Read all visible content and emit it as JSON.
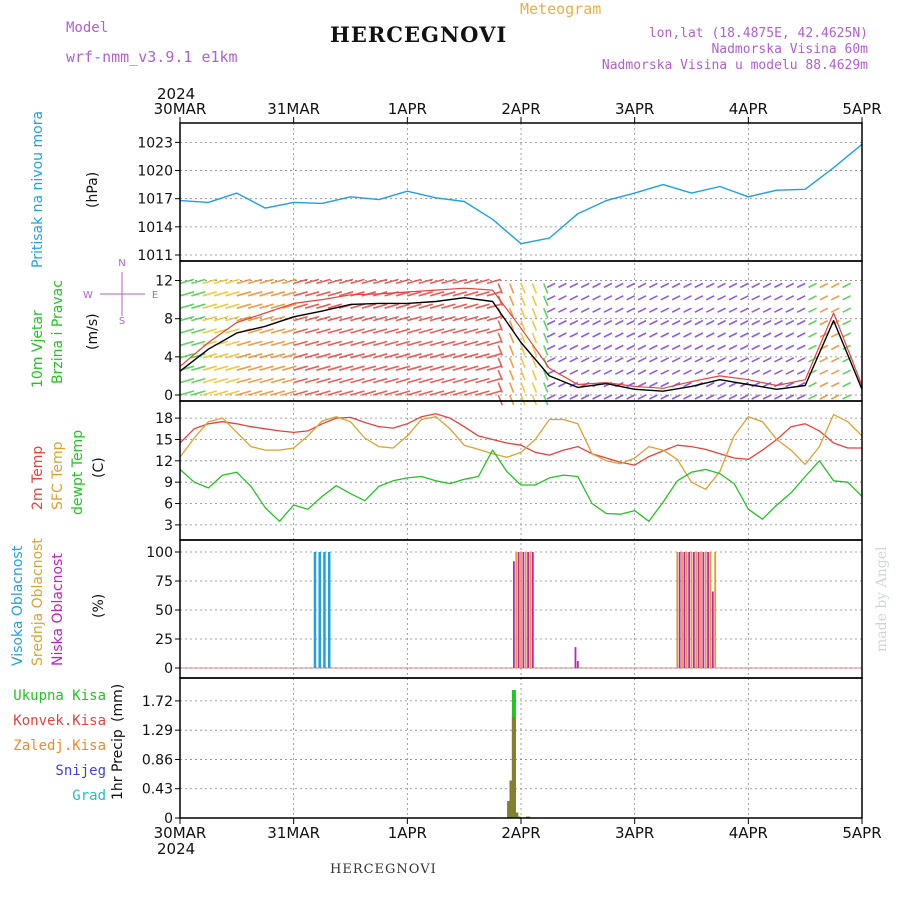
{
  "header": {
    "model_label": "Model",
    "model_value": "wrf-nmm_v3.9.1 e1km",
    "title": "HERCEGNOVI",
    "meteogram_label": "Meteogram",
    "lonlat": "lon,lat (18.4875E, 42.4625N)",
    "elevation": "Nadmorska Visina 60m",
    "model_elevation": "Nadmorska Visina u modelu 88.4629m",
    "year_top": "2024",
    "year_bottom": "2024",
    "footer_title": "HERCEGNOVI",
    "credit": "made by Angel"
  },
  "colors": {
    "pressure": "#1ea0e6",
    "wind_label": "#22c422",
    "temp2m": "#e8423a",
    "sfc": "#e0a030",
    "dewpt": "#22c422",
    "cloud_high": "#1ea0e6",
    "cloud_mid": "#e0a030",
    "cloud_low": "#c020c0",
    "violet": "#b060d0",
    "grid": "#888888"
  },
  "chart_data": [
    {
      "type": "line",
      "id": "pressure",
      "ylabel": "Pritisak na nivou mora",
      "unit": "(hPa)",
      "x_ticks": [
        "30MAR",
        "31MAR",
        "1APR",
        "2APR",
        "3APR",
        "4APR",
        "5APR"
      ],
      "ylim": [
        1011,
        1024
      ],
      "yticks": [
        1011,
        1014,
        1017,
        1020,
        1023
      ],
      "grid": true,
      "x_hours": [
        0,
        6,
        12,
        18,
        24,
        30,
        36,
        42,
        48,
        54,
        60,
        66,
        72,
        78,
        84,
        90,
        96,
        102,
        108,
        114,
        120,
        126,
        132,
        138,
        144
      ],
      "values": [
        1016.8,
        1016.6,
        1017.6,
        1016.0,
        1016.6,
        1016.5,
        1017.2,
        1016.9,
        1017.8,
        1017.1,
        1016.7,
        1014.8,
        1012.2,
        1012.8,
        1015.4,
        1016.8,
        1017.6,
        1018.5,
        1017.6,
        1018.3,
        1017.2,
        1017.9,
        1018.0,
        1020.3,
        1022.8
      ]
    },
    {
      "type": "line",
      "id": "wind",
      "ylabel": [
        "10m Vjetar",
        "Brzina i Pravac"
      ],
      "unit": "(m/s)",
      "compass": {
        "n": "N",
        "s": "S",
        "e": "E",
        "w": "W"
      },
      "ylim": [
        0,
        13
      ],
      "yticks": [
        0,
        4,
        8,
        12
      ],
      "grid": true,
      "x_hours": [
        0,
        6,
        12,
        18,
        24,
        30,
        36,
        42,
        48,
        54,
        60,
        66,
        72,
        78,
        84,
        90,
        96,
        102,
        108,
        114,
        120,
        126,
        132,
        138,
        144
      ],
      "values": [
        2.5,
        4.8,
        6.5,
        7.2,
        8.2,
        8.8,
        9.5,
        9.6,
        9.6,
        9.8,
        10.2,
        9.8,
        5.5,
        2.0,
        0.8,
        1.2,
        0.6,
        0.4,
        0.9,
        1.6,
        1.1,
        0.6,
        1.0,
        7.8,
        0.6
      ],
      "gusts": [
        3.0,
        5.5,
        7.6,
        8.6,
        9.6,
        10.0,
        10.5,
        10.6,
        10.8,
        11.0,
        11.2,
        11.0,
        7.0,
        2.8,
        1.1,
        1.3,
        0.9,
        0.7,
        1.4,
        2.0,
        1.6,
        1.0,
        1.6,
        8.6,
        1.0
      ]
    },
    {
      "type": "line",
      "id": "temperature",
      "ylabel": [
        "2m Temp",
        "SFC Temp",
        "dewpt Temp"
      ],
      "unit": "(C)",
      "ylim": [
        2,
        19
      ],
      "yticks": [
        3,
        6,
        9,
        12,
        15,
        18
      ],
      "grid": true,
      "x_hours": [
        0,
        3,
        6,
        9,
        12,
        15,
        18,
        21,
        24,
        27,
        30,
        33,
        36,
        39,
        42,
        45,
        48,
        51,
        54,
        57,
        60,
        63,
        66,
        69,
        72,
        75,
        78,
        81,
        84,
        87,
        90,
        93,
        96,
        99,
        102,
        105,
        108,
        111,
        114,
        117,
        120,
        123,
        126,
        129,
        132,
        135,
        138,
        141,
        144
      ],
      "series": [
        {
          "name": "2m Temp",
          "values": [
            14.5,
            16.5,
            17.2,
            17.5,
            17.2,
            16.8,
            16.5,
            16.2,
            16.0,
            16.2,
            17.2,
            18.0,
            18.1,
            17.4,
            16.8,
            16.6,
            17.2,
            18.2,
            18.6,
            18.0,
            16.8,
            15.5,
            15.0,
            14.5,
            14.2,
            13.2,
            12.8,
            13.5,
            14.0,
            13.0,
            12.4,
            11.8,
            11.4,
            12.6,
            13.4,
            14.2,
            14.0,
            13.6,
            13.0,
            12.4,
            12.2,
            13.5,
            15.0,
            16.8,
            17.2,
            16.2,
            14.5,
            13.8,
            13.8
          ]
        },
        {
          "name": "SFC Temp",
          "values": [
            12.5,
            15.2,
            17.5,
            18.0,
            16.0,
            14.0,
            13.5,
            13.5,
            13.8,
            15.5,
            17.6,
            18.2,
            17.5,
            15.2,
            14.0,
            13.8,
            15.5,
            17.8,
            18.2,
            16.5,
            14.2,
            13.6,
            13.0,
            12.5,
            13.2,
            15.0,
            17.8,
            17.8,
            17.2,
            13.0,
            12.0,
            11.6,
            12.4,
            14.0,
            13.5,
            12.2,
            9.0,
            8.0,
            10.5,
            15.5,
            18.2,
            17.5,
            15.0,
            13.5,
            11.5,
            14.0,
            18.5,
            17.5,
            15.5
          ]
        },
        {
          "name": "dewpt Temp",
          "values": [
            10.8,
            9.0,
            8.2,
            10.0,
            10.4,
            8.4,
            5.4,
            3.5,
            5.8,
            5.2,
            7.0,
            8.5,
            7.4,
            6.4,
            8.4,
            9.2,
            9.6,
            9.8,
            9.2,
            8.8,
            9.4,
            9.8,
            13.5,
            10.5,
            8.6,
            8.6,
            9.6,
            10.0,
            9.8,
            6.0,
            4.6,
            4.5,
            5.0,
            3.5,
            6.2,
            9.2,
            10.4,
            10.8,
            10.2,
            8.8,
            5.2,
            3.8,
            5.8,
            7.5,
            9.8,
            12.0,
            9.2,
            9.0,
            7.0
          ]
        }
      ]
    },
    {
      "type": "bar",
      "id": "clouds",
      "ylabel": [
        "Visoka Oblacnost",
        "Srednja Oblacnost",
        "Niska Oblacnost"
      ],
      "unit": "(%)",
      "ylim": [
        0,
        100
      ],
      "yticks": [
        0,
        25,
        50,
        75,
        100
      ],
      "grid": true,
      "series": [
        {
          "name": "Visoka Oblacnost",
          "x_hours": [
            28.5,
            29.5,
            30.5,
            31.5
          ],
          "values": [
            100,
            100,
            100,
            100
          ]
        },
        {
          "name": "Srednja Oblacnost",
          "x_hours": [
            71.0,
            72.0,
            73.0,
            74.0,
            105.0,
            106.0,
            107.0,
            108.0,
            109.0,
            110.0,
            111.0,
            112.0,
            113.0
          ],
          "values": [
            100,
            100,
            100,
            100,
            100,
            100,
            100,
            100,
            100,
            100,
            100,
            100,
            100
          ]
        },
        {
          "name": "Niska Oblacnost",
          "x_hours": [
            70.5,
            71.5,
            72.5,
            73.5,
            74.5,
            83.5,
            84.0,
            105.5,
            106.5,
            107.5,
            108.5,
            109.5,
            110.5,
            111.5,
            112.5
          ],
          "values": [
            92,
            100,
            100,
            100,
            100,
            18,
            6,
            100,
            100,
            100,
            100,
            100,
            100,
            100,
            66
          ]
        }
      ]
    },
    {
      "type": "bar",
      "id": "precip",
      "ylabel": "1hr Precip",
      "unit": "(mm)",
      "legend": [
        "Ukupna Kisa",
        "Konvek.Kisa",
        "Zaledj.Kisa",
        "Snijeg",
        "Grad"
      ],
      "ylim": [
        0,
        1.88
      ],
      "yticks": [
        0,
        0.43,
        0.86,
        1.29,
        1.72
      ],
      "ytick_labels": [
        "0",
        "0.43",
        "0.86",
        "1.29",
        "1.72"
      ],
      "grid": true,
      "x_hours": [
        69.5,
        70.0,
        70.5,
        71.0,
        71.5,
        73.5
      ],
      "total": [
        0.25,
        0.55,
        1.88,
        0.08,
        0.02,
        0.02
      ],
      "convective": [
        0.25,
        0.55,
        1.48,
        0.08,
        0.02,
        0.02
      ]
    }
  ]
}
